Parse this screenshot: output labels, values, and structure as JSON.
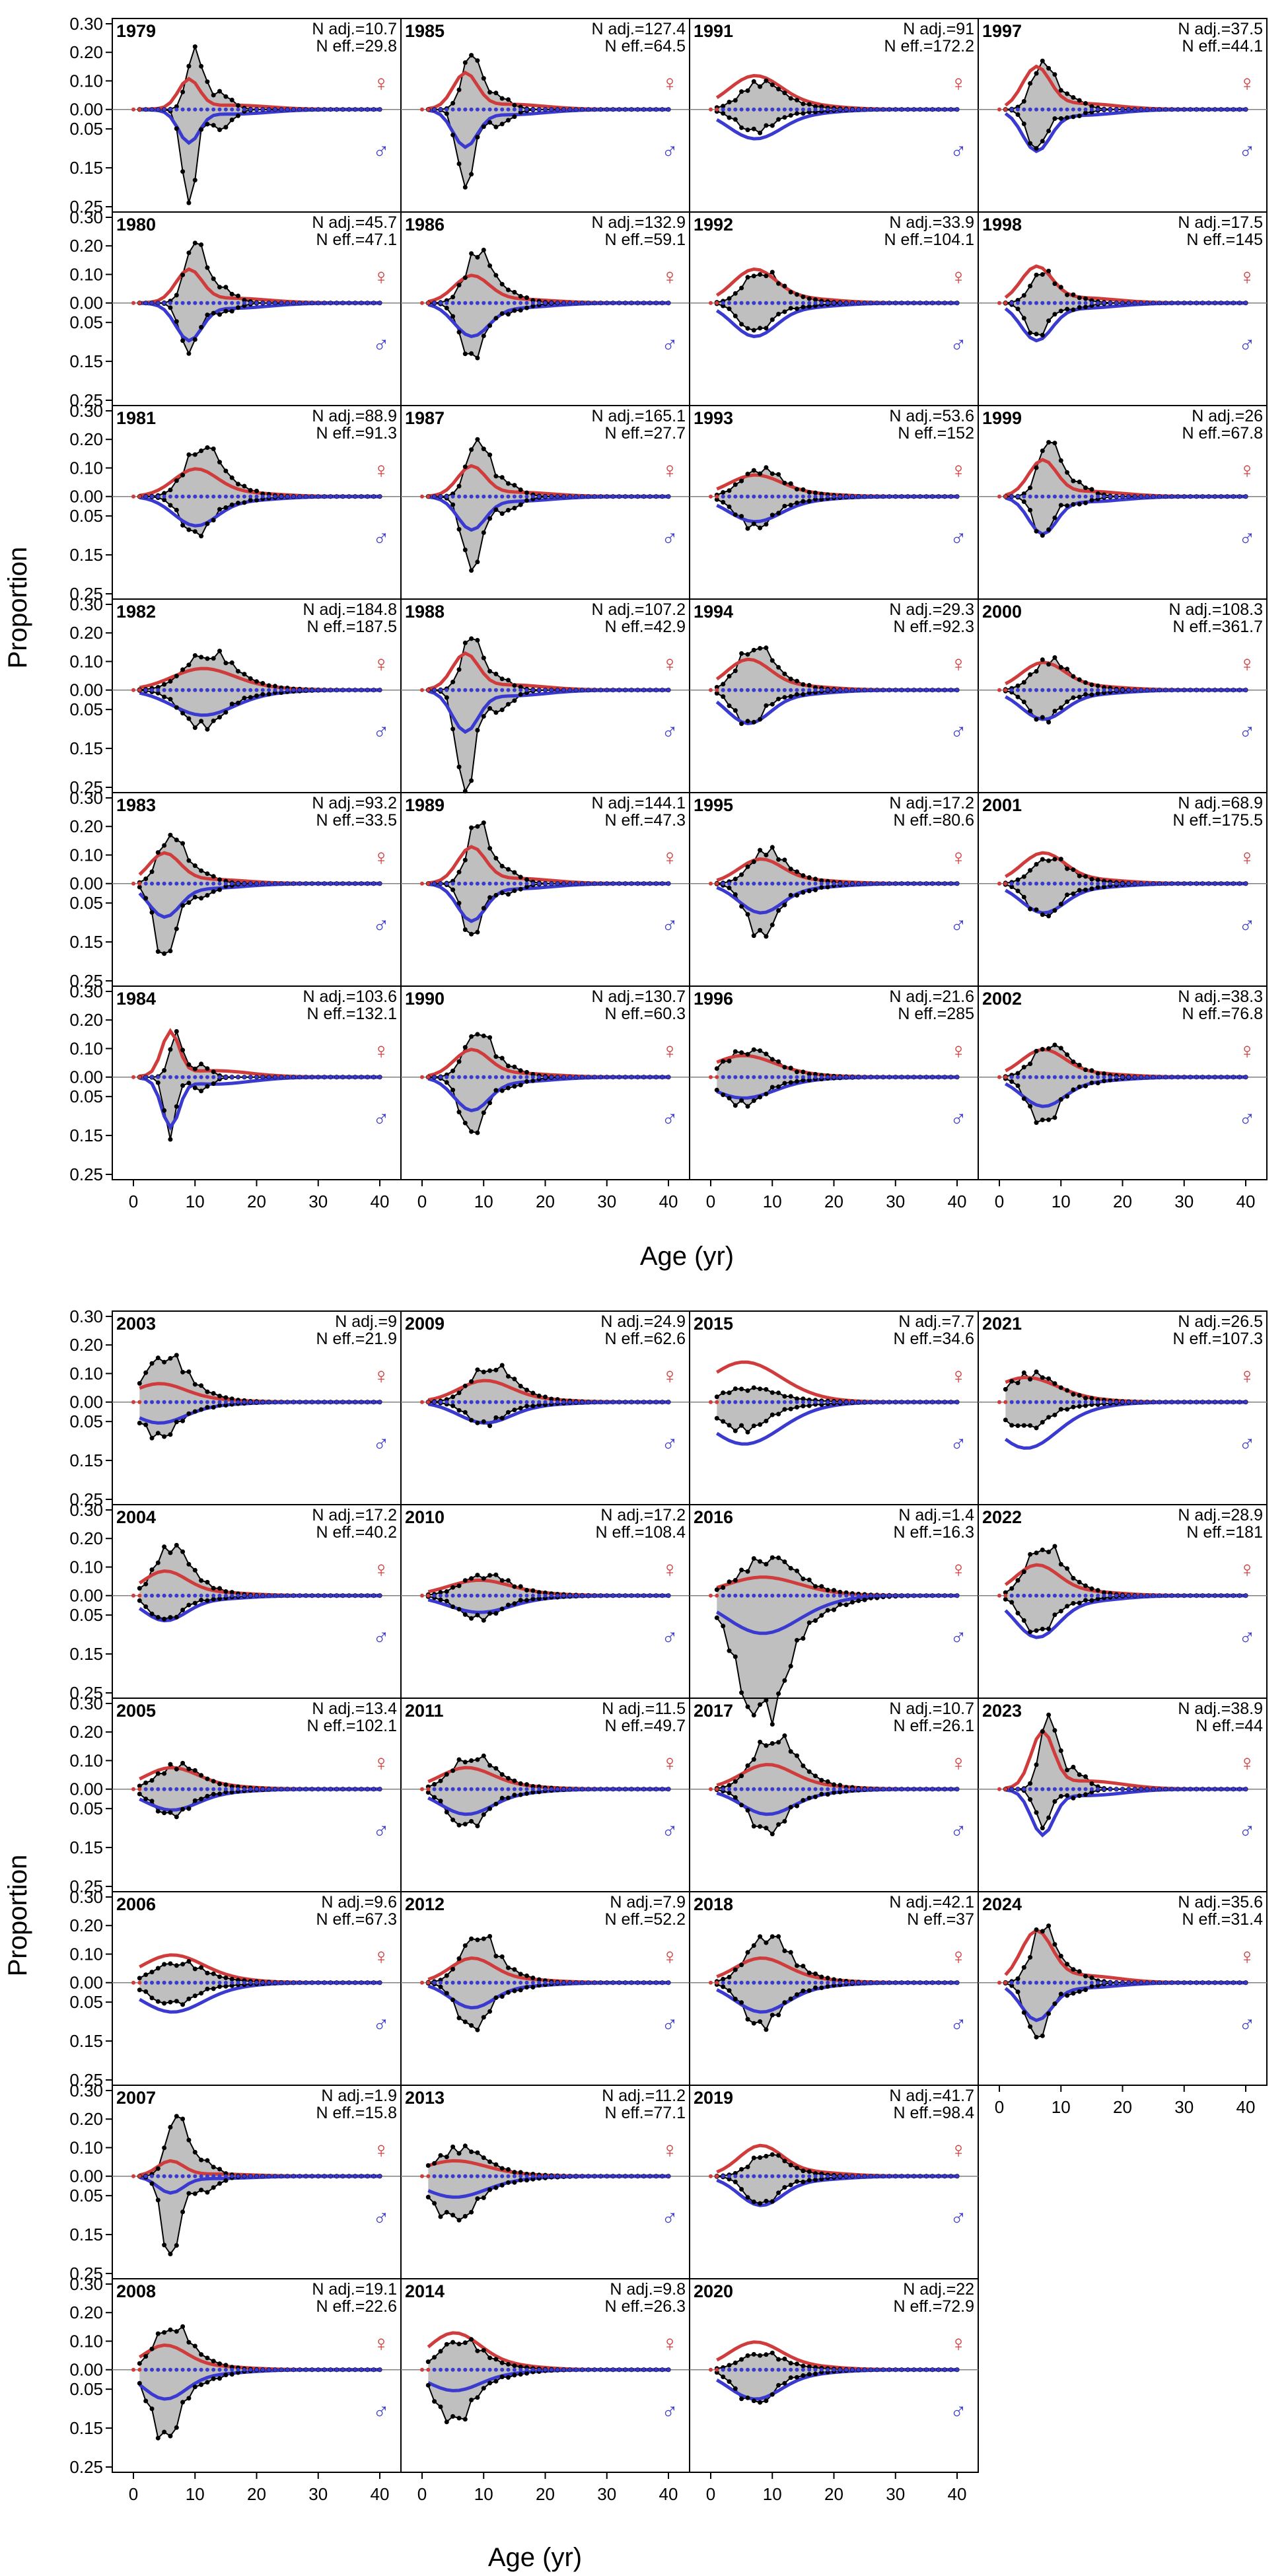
{
  "figure": {
    "ylabel": "Proportion",
    "xlabel": "Age (yr)",
    "female_symbol": "♀",
    "male_symbol": "♂",
    "colors": {
      "fill": "#BFBFBF",
      "obs": "#000000",
      "female": "#D03C3C",
      "male": "#3A3AD0",
      "zero_line": "#808080"
    }
  },
  "chart_data": [
    {
      "type": "area",
      "title": "",
      "xlabel": "Age (yr)",
      "ylabel": "Proportion",
      "xlim": [
        0,
        40
      ],
      "xticks": [
        0,
        10,
        20,
        30,
        40
      ],
      "female_ylim": [
        0,
        0.3
      ],
      "female_yticks": [
        "0.00",
        "0.10",
        "0.20",
        "0.30"
      ],
      "male_ylim": [
        0,
        0.25
      ],
      "male_yticks": [
        "0.05",
        "0.15",
        "0.25"
      ],
      "columns": 4,
      "panels": [
        {
          "year": "1979",
          "n_adj": "N adj.=10.7",
          "n_eff": "N eff.=29.8",
          "peak_age": 10,
          "obs_f": 0.22,
          "obs_m": 0.24,
          "exp_f": 0.1,
          "exp_m": 0.08,
          "spread": 1.2
        },
        {
          "year": "1980",
          "n_adj": "N adj.=45.7",
          "n_eff": "N eff.=47.1",
          "peak_age": 10,
          "obs_f": 0.21,
          "obs_m": 0.13,
          "exp_f": 0.11,
          "exp_m": 0.09,
          "spread": 1.5
        },
        {
          "year": "1981",
          "n_adj": "N adj.=88.9",
          "n_eff": "N eff.=91.3",
          "peak_age": 11,
          "obs_f": 0.16,
          "obs_m": 0.09,
          "exp_f": 0.09,
          "exp_m": 0.07,
          "spread": 2.5
        },
        {
          "year": "1982",
          "n_adj": "N adj.=184.8",
          "n_eff": "N eff.=187.5",
          "peak_age": 12,
          "obs_f": 0.11,
          "obs_m": 0.08,
          "exp_f": 0.07,
          "exp_m": 0.06,
          "spread": 3.5
        },
        {
          "year": "1983",
          "n_adj": "N adj.=93.2",
          "n_eff": "N eff.=33.5",
          "peak_age": 6,
          "obs_f": 0.17,
          "obs_m": 0.18,
          "exp_f": 0.1,
          "exp_m": 0.08,
          "spread": 1.8
        },
        {
          "year": "1984",
          "n_adj": "N adj.=103.6",
          "n_eff": "N eff.=132.1",
          "peak_age": 7,
          "obs_f": 0.16,
          "obs_m": 0.16,
          "exp_f": 0.15,
          "exp_m": 0.12,
          "spread": 1.0
        },
        {
          "year": "1985",
          "n_adj": "N adj.=127.4",
          "n_eff": "N eff.=64.5",
          "peak_age": 8,
          "obs_f": 0.19,
          "obs_m": 0.2,
          "exp_f": 0.12,
          "exp_m": 0.09,
          "spread": 1.4
        },
        {
          "year": "1986",
          "n_adj": "N adj.=132.9",
          "n_eff": "N eff.=59.1",
          "peak_age": 9,
          "obs_f": 0.16,
          "obs_m": 0.13,
          "exp_f": 0.09,
          "exp_m": 0.08,
          "spread": 2.0
        },
        {
          "year": "1987",
          "n_adj": "N adj.=165.1",
          "n_eff": "N eff.=27.7",
          "peak_age": 9,
          "obs_f": 0.2,
          "obs_m": 0.19,
          "exp_f": 0.1,
          "exp_m": 0.08,
          "spread": 1.6
        },
        {
          "year": "1988",
          "n_adj": "N adj.=107.2",
          "n_eff": "N eff.=42.9",
          "peak_age": 8,
          "obs_f": 0.18,
          "obs_m": 0.26,
          "exp_f": 0.12,
          "exp_m": 0.1,
          "spread": 1.5
        },
        {
          "year": "1989",
          "n_adj": "N adj.=144.1",
          "n_eff": "N eff.=47.3",
          "peak_age": 9,
          "obs_f": 0.2,
          "obs_m": 0.13,
          "exp_f": 0.12,
          "exp_m": 0.09,
          "spread": 1.6
        },
        {
          "year": "1990",
          "n_adj": "N adj.=130.7",
          "n_eff": "N eff.=60.3",
          "peak_age": 9,
          "obs_f": 0.15,
          "obs_m": 0.14,
          "exp_f": 0.09,
          "exp_m": 0.08,
          "spread": 2.0
        },
        {
          "year": "1991",
          "n_adj": "N adj.=91",
          "n_eff": "N eff.=172.2",
          "peak_age": 8,
          "obs_f": 0.08,
          "obs_m": 0.05,
          "exp_f": 0.11,
          "exp_m": 0.07,
          "spread": 3.0
        },
        {
          "year": "1992",
          "n_adj": "N adj.=33.9",
          "n_eff": "N eff.=104.1",
          "peak_age": 8,
          "obs_f": 0.1,
          "obs_m": 0.07,
          "exp_f": 0.11,
          "exp_m": 0.08,
          "spread": 2.5
        },
        {
          "year": "1993",
          "n_adj": "N adj.=53.6",
          "n_eff": "N eff.=152",
          "peak_age": 8,
          "obs_f": 0.08,
          "obs_m": 0.07,
          "exp_f": 0.07,
          "exp_m": 0.06,
          "spread": 3.0
        },
        {
          "year": "1994",
          "n_adj": "N adj.=29.3",
          "n_eff": "N eff.=92.3",
          "peak_age": 7,
          "obs_f": 0.14,
          "obs_m": 0.08,
          "exp_f": 0.1,
          "exp_m": 0.08,
          "spread": 2.5
        },
        {
          "year": "1995",
          "n_adj": "N adj.=17.2",
          "n_eff": "N eff.=80.6",
          "peak_age": 9,
          "obs_f": 0.1,
          "obs_m": 0.12,
          "exp_f": 0.08,
          "exp_m": 0.07,
          "spread": 2.5
        },
        {
          "year": "1996",
          "n_adj": "N adj.=21.6",
          "n_eff": "N eff.=285",
          "peak_age": 6,
          "obs_f": 0.08,
          "obs_m": 0.06,
          "exp_f": 0.07,
          "exp_m": 0.05,
          "spread": 3.5
        },
        {
          "year": "1997",
          "n_adj": "N adj.=37.5",
          "n_eff": "N eff.=44.1",
          "peak_age": 7,
          "obs_f": 0.17,
          "obs_m": 0.1,
          "exp_f": 0.14,
          "exp_m": 0.1,
          "spread": 1.6
        },
        {
          "year": "1998",
          "n_adj": "N adj.=17.5",
          "n_eff": "N eff.=145",
          "peak_age": 7,
          "obs_f": 0.1,
          "obs_m": 0.08,
          "exp_f": 0.12,
          "exp_m": 0.09,
          "spread": 1.8
        },
        {
          "year": "1999",
          "n_adj": "N adj.=26",
          "n_eff": "N eff.=67.8",
          "peak_age": 8,
          "obs_f": 0.19,
          "obs_m": 0.1,
          "exp_f": 0.12,
          "exp_m": 0.09,
          "spread": 1.6
        },
        {
          "year": "2000",
          "n_adj": "N adj.=108.3",
          "n_eff": "N eff.=361.7",
          "peak_age": 8,
          "obs_f": 0.09,
          "obs_m": 0.07,
          "exp_f": 0.09,
          "exp_m": 0.07,
          "spread": 2.5
        },
        {
          "year": "2001",
          "n_adj": "N adj.=68.9",
          "n_eff": "N eff.=175.5",
          "peak_age": 8,
          "obs_f": 0.08,
          "obs_m": 0.08,
          "exp_f": 0.1,
          "exp_m": 0.07,
          "spread": 2.5
        },
        {
          "year": "2002",
          "n_adj": "N adj.=38.3",
          "n_eff": "N eff.=76.8",
          "peak_age": 8,
          "obs_f": 0.1,
          "obs_m": 0.11,
          "exp_f": 0.09,
          "exp_m": 0.07,
          "spread": 2.5
        },
        {
          "year": "2003",
          "n_adj": "N adj.=9",
          "n_eff": "N eff.=21.9",
          "peak_age": 5,
          "obs_f": 0.14,
          "obs_m": 0.08,
          "exp_f": 0.06,
          "exp_m": 0.05,
          "spread": 3.0
        },
        {
          "year": "2004",
          "n_adj": "N adj.=17.2",
          "n_eff": "N eff.=40.2",
          "peak_age": 6,
          "obs_f": 0.15,
          "obs_m": 0.06,
          "exp_f": 0.08,
          "exp_m": 0.06,
          "spread": 2.5
        },
        {
          "year": "2005",
          "n_adj": "N adj.=13.4",
          "n_eff": "N eff.=102.1",
          "peak_age": 7,
          "obs_f": 0.07,
          "obs_m": 0.06,
          "exp_f": 0.07,
          "exp_m": 0.05,
          "spread": 3.0
        },
        {
          "year": "2006",
          "n_adj": "N adj.=9.6",
          "n_eff": "N eff.=67.3",
          "peak_age": 7,
          "obs_f": 0.06,
          "obs_m": 0.05,
          "exp_f": 0.09,
          "exp_m": 0.07,
          "spread": 3.5
        },
        {
          "year": "2007",
          "n_adj": "N adj.=1.9",
          "n_eff": "N eff.=15.8",
          "peak_age": 7,
          "obs_f": 0.21,
          "obs_m": 0.2,
          "exp_f": 0.05,
          "exp_m": 0.04,
          "spread": 1.5
        },
        {
          "year": "2008",
          "n_adj": "N adj.=19.1",
          "n_eff": "N eff.=22.6",
          "peak_age": 6,
          "obs_f": 0.14,
          "obs_m": 0.16,
          "exp_f": 0.08,
          "exp_m": 0.07,
          "spread": 2.5
        },
        {
          "year": "2009",
          "n_adj": "N adj.=24.9",
          "n_eff": "N eff.=62.6",
          "peak_age": 11,
          "obs_f": 0.11,
          "obs_m": 0.05,
          "exp_f": 0.07,
          "exp_m": 0.05,
          "spread": 3.0
        },
        {
          "year": "2010",
          "n_adj": "N adj.=17.2",
          "n_eff": "N eff.=108.4",
          "peak_age": 10,
          "obs_f": 0.06,
          "obs_m": 0.05,
          "exp_f": 0.05,
          "exp_m": 0.04,
          "spread": 3.5
        },
        {
          "year": "2011",
          "n_adj": "N adj.=11.5",
          "n_eff": "N eff.=49.7",
          "peak_age": 8,
          "obs_f": 0.1,
          "obs_m": 0.09,
          "exp_f": 0.07,
          "exp_m": 0.06,
          "spread": 3.0
        },
        {
          "year": "2012",
          "n_adj": "N adj.=7.9",
          "n_eff": "N eff.=52.2",
          "peak_age": 9,
          "obs_f": 0.15,
          "obs_m": 0.11,
          "exp_f": 0.08,
          "exp_m": 0.06,
          "spread": 2.5
        },
        {
          "year": "2013",
          "n_adj": "N adj.=11.2",
          "n_eff": "N eff.=77.1",
          "peak_age": 6,
          "obs_f": 0.08,
          "obs_m": 0.1,
          "exp_f": 0.05,
          "exp_m": 0.05,
          "spread": 3.5
        },
        {
          "year": "2014",
          "n_adj": "N adj.=9.8",
          "n_eff": "N eff.=26.3",
          "peak_age": 6,
          "obs_f": 0.09,
          "obs_m": 0.12,
          "exp_f": 0.12,
          "exp_m": 0.05,
          "spread": 3.0
        },
        {
          "year": "2015",
          "n_adj": "N adj.=7.7",
          "n_eff": "N eff.=34.6",
          "peak_age": 6,
          "obs_f": 0.04,
          "obs_m": 0.06,
          "exp_f": 0.13,
          "exp_m": 0.1,
          "spread": 4.0
        },
        {
          "year": "2016",
          "n_adj": "N adj.=1.4",
          "n_eff": "N eff.=16.3",
          "peak_age": 9,
          "obs_f": 0.11,
          "obs_m": 0.28,
          "exp_f": 0.06,
          "exp_m": 0.09,
          "spread": 4.0
        },
        {
          "year": "2017",
          "n_adj": "N adj.=10.7",
          "n_eff": "N eff.=26.1",
          "peak_age": 10,
          "obs_f": 0.16,
          "obs_m": 0.1,
          "exp_f": 0.08,
          "exp_m": 0.06,
          "spread": 3.0
        },
        {
          "year": "2018",
          "n_adj": "N adj.=42.1",
          "n_eff": "N eff.=37",
          "peak_age": 9,
          "obs_f": 0.14,
          "obs_m": 0.1,
          "exp_f": 0.08,
          "exp_m": 0.07,
          "spread": 3.0
        },
        {
          "year": "2019",
          "n_adj": "N adj.=41.7",
          "n_eff": "N eff.=98.4",
          "peak_age": 9,
          "obs_f": 0.07,
          "obs_m": 0.07,
          "exp_f": 0.1,
          "exp_m": 0.07,
          "spread": 2.5
        },
        {
          "year": "2020",
          "n_adj": "N adj.=22",
          "n_eff": "N eff.=72.9",
          "peak_age": 8,
          "obs_f": 0.05,
          "obs_m": 0.08,
          "exp_f": 0.09,
          "exp_m": 0.07,
          "spread": 3.0
        },
        {
          "year": "2021",
          "n_adj": "N adj.=26.5",
          "n_eff": "N eff.=107.3",
          "peak_age": 5,
          "obs_f": 0.08,
          "obs_m": 0.06,
          "exp_f": 0.08,
          "exp_m": 0.11,
          "spread": 3.5
        },
        {
          "year": "2022",
          "n_adj": "N adj.=28.9",
          "n_eff": "N eff.=181",
          "peak_age": 7,
          "obs_f": 0.16,
          "obs_m": 0.09,
          "exp_f": 0.1,
          "exp_m": 0.1,
          "spread": 2.5
        },
        {
          "year": "2023",
          "n_adj": "N adj.=38.9",
          "n_eff": "N eff.=44",
          "peak_age": 8,
          "obs_f": 0.26,
          "obs_m": 0.1,
          "exp_f": 0.19,
          "exp_m": 0.11,
          "spread": 1.3
        },
        {
          "year": "2024",
          "n_adj": "N adj.=35.6",
          "n_eff": "N eff.=31.4",
          "peak_age": 7,
          "obs_f": 0.18,
          "obs_m": 0.14,
          "exp_f": 0.17,
          "exp_m": 0.09,
          "spread": 1.8
        }
      ]
    }
  ]
}
